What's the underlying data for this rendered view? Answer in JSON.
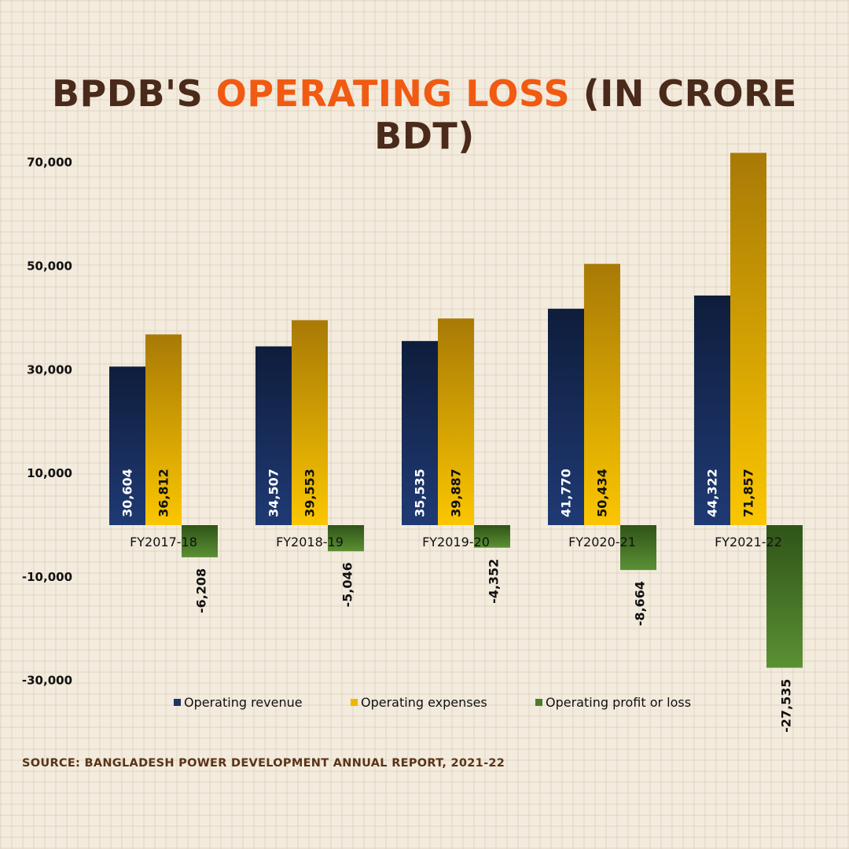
{
  "title": {
    "part1": "BPDB'S ",
    "highlight": "OPERATING LOSS",
    "part2": " (IN CRORE BDT)"
  },
  "source": "SOURCE: BANGLADESH POWER DEVELOPMENT ANNUAL REPORT, 2021-22",
  "colors": {
    "revenue": "#1a2f5e",
    "expenses": "#f2b600",
    "profit_loss": "#4a7d2a",
    "title_text": "#4a2a1a",
    "title_highlight": "#f15a12"
  },
  "chart_data": {
    "type": "bar",
    "title": "BPDB'S OPERATING LOSS (IN CRORE BDT)",
    "categories": [
      "FY2017-18",
      "FY2018-19",
      "FY2019-20",
      "FY2020-21",
      "FY2021-22"
    ],
    "series": [
      {
        "name": "Operating revenue",
        "values": [
          30604,
          34507,
          35535,
          41770,
          44322
        ],
        "labels": [
          "30,604",
          "34,507",
          "35,535",
          "41,770",
          "44,322"
        ]
      },
      {
        "name": "Operating expenses",
        "values": [
          36812,
          39553,
          39887,
          50434,
          71857
        ],
        "labels": [
          "36,812",
          "39,553",
          "39,887",
          "50,434",
          "71,857"
        ]
      },
      {
        "name": "Operating profit or loss",
        "values": [
          -6208,
          -5046,
          -4352,
          -8664,
          -27535
        ],
        "labels": [
          "-6,208",
          "-5,046",
          "-4,352",
          "-8,664",
          "-27,535"
        ]
      }
    ],
    "yticks": [
      70000,
      50000,
      30000,
      10000,
      -10000,
      -30000
    ],
    "ytick_labels": [
      "70,000",
      "50,000",
      "30,000",
      "10,000",
      "-10,000",
      "-30,000"
    ],
    "ylim": [
      -30000,
      70000
    ],
    "legend": "bottom",
    "grid": false
  }
}
